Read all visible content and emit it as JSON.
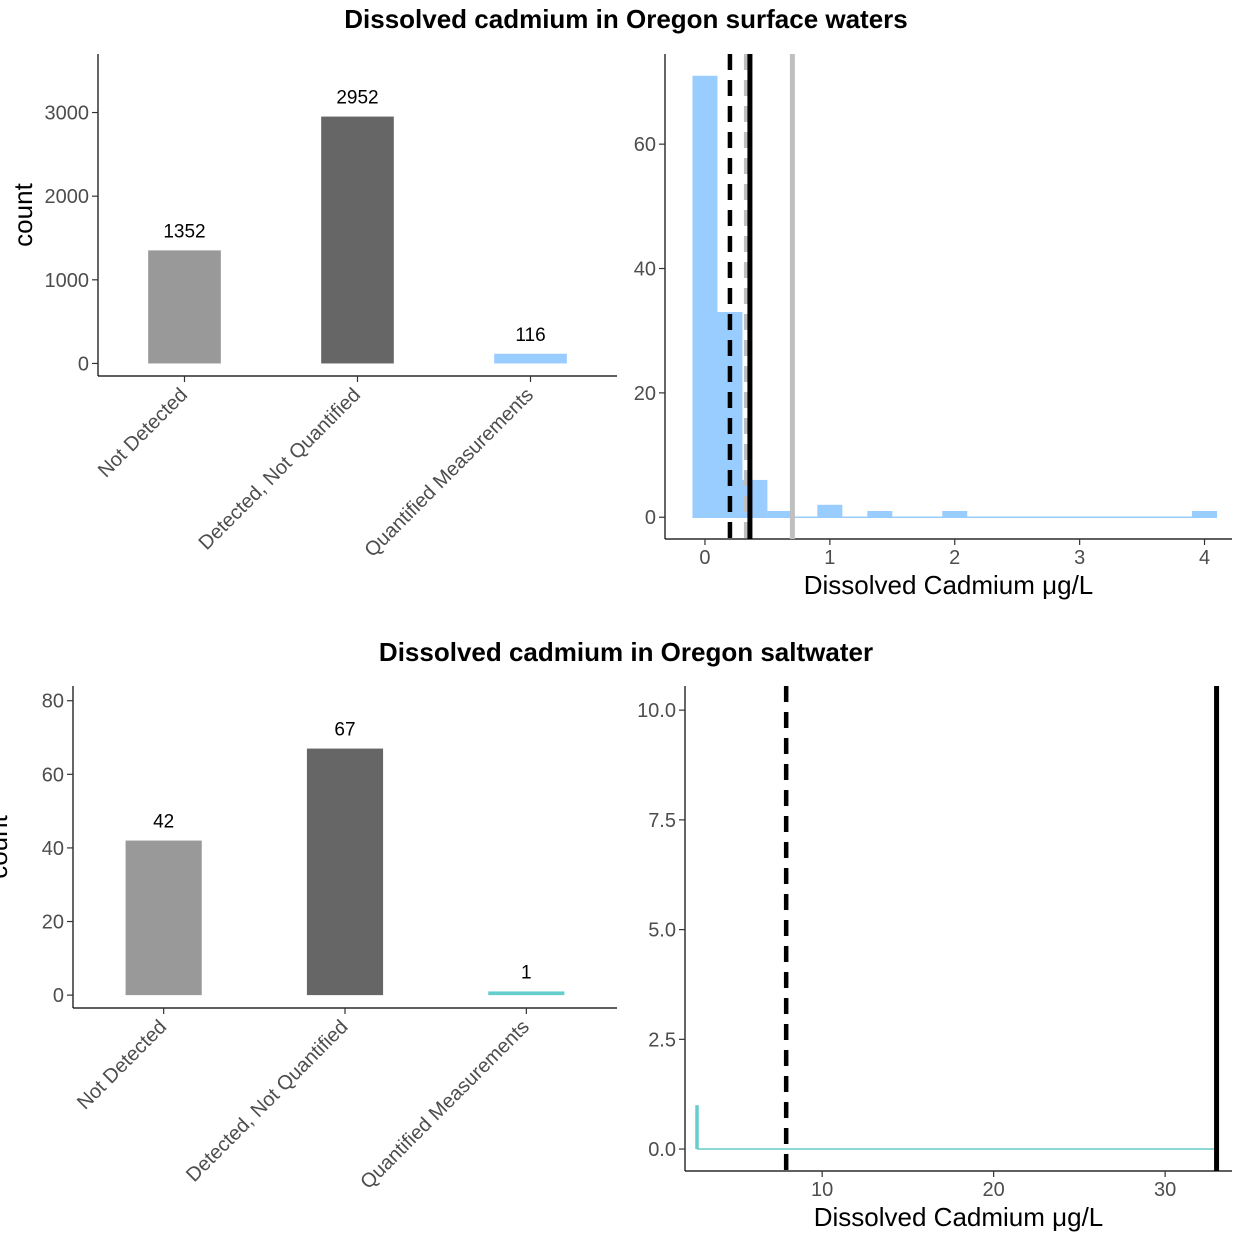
{
  "colors": {
    "not_detected": "#999999",
    "detected_not_quantified": "#666666",
    "quantified_fresh": "#99ccff",
    "quantified_salt": "#66cccc",
    "criterion_line": "#000000",
    "reference_line": "#bfbfbf"
  },
  "chart_data": [
    {
      "section_title": "Dissolved cadmium in Oregon surface waters",
      "type": "bar",
      "ylabel": "count",
      "xlabel": "",
      "categories": [
        "Not Detected",
        "Detected, Not Quantified",
        "Quantified Measurements"
      ],
      "values": [
        1352,
        2952,
        116
      ],
      "bar_colors": [
        "#999999",
        "#666666",
        "#99ccff"
      ],
      "yticks": [
        0,
        1000,
        2000,
        3000
      ],
      "ylim": [
        -150,
        3700
      ]
    },
    {
      "type": "histogram",
      "xlabel": "Dissolved Cadmium μg/L",
      "ylabel": "",
      "bin_width": 0.2,
      "bins": [
        {
          "x0": -0.1,
          "x1": 0.1,
          "count": 71
        },
        {
          "x0": 0.1,
          "x1": 0.3,
          "count": 33
        },
        {
          "x0": 0.3,
          "x1": 0.5,
          "count": 6
        },
        {
          "x0": 0.5,
          "x1": 0.7,
          "count": 1
        },
        {
          "x0": 0.9,
          "x1": 1.1,
          "count": 2
        },
        {
          "x0": 1.3,
          "x1": 1.5,
          "count": 1
        },
        {
          "x0": 1.9,
          "x1": 2.1,
          "count": 1
        },
        {
          "x0": 3.9,
          "x1": 4.1,
          "count": 1
        }
      ],
      "vlines": [
        {
          "x": 0.2,
          "color": "#000000",
          "style": "dashed"
        },
        {
          "x": 0.33,
          "color": "#bfbfbf",
          "style": "dashed"
        },
        {
          "x": 0.36,
          "color": "#000000",
          "style": "solid"
        },
        {
          "x": 0.7,
          "color": "#bfbfbf",
          "style": "solid"
        }
      ],
      "fill": "#99ccff",
      "xticks": [
        0,
        1,
        2,
        3,
        4
      ],
      "yticks": [
        0,
        20,
        40,
        60
      ],
      "xlim": [
        -0.32,
        4.22
      ],
      "ylim": [
        -3.5,
        74.5
      ]
    },
    {
      "section_title": "Dissolved cadmium in Oregon saltwater",
      "type": "bar",
      "ylabel": "count",
      "xlabel": "",
      "categories": [
        "Not Detected",
        "Detected, Not Quantified",
        "Quantified Measurements"
      ],
      "values": [
        42,
        67,
        1
      ],
      "bar_colors": [
        "#999999",
        "#666666",
        "#66cccc"
      ],
      "yticks": [
        0,
        20,
        40,
        60,
        80
      ],
      "ylim": [
        -3.5,
        84
      ]
    },
    {
      "type": "histogram",
      "xlabel": "Dissolved Cadmium μg/L",
      "ylabel": "",
      "bins": [
        {
          "x0": 2.6,
          "x1": 2.8,
          "count": 1
        }
      ],
      "baseline_xlim": [
        2.7,
        33.0
      ],
      "vlines": [
        {
          "x": 7.9,
          "color": "#000000",
          "style": "dashed"
        },
        {
          "x": 33.0,
          "color": "#000000",
          "style": "solid"
        }
      ],
      "outline": "#66cccc",
      "xticks": [
        10,
        20,
        30
      ],
      "yticks": [
        0.0,
        2.5,
        5.0,
        7.5,
        10.0
      ],
      "ytick_labels": [
        "0.0",
        "2.5",
        "5.0",
        "7.5",
        "10.0"
      ],
      "xlim": [
        2.0,
        33.9
      ],
      "ylim": [
        -0.5,
        10.55
      ]
    }
  ]
}
